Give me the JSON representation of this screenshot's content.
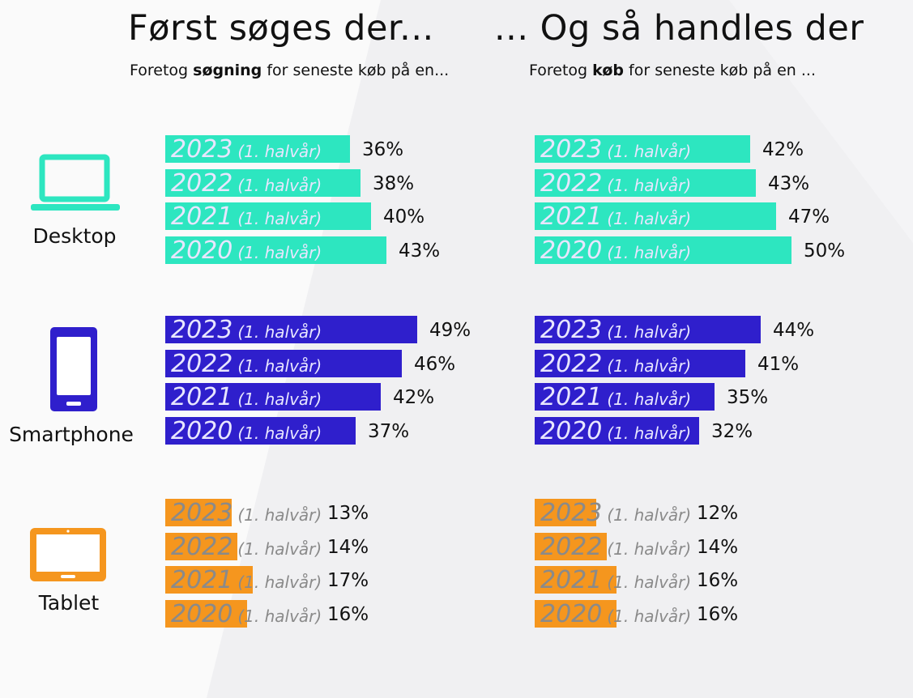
{
  "colors": {
    "desktop": "#2de6c0",
    "smartphone": "#2f1fcc",
    "tablet": "#f5961e",
    "label_on_dark": "#e8e6ff",
    "label_on_light": "#8a8a8a"
  },
  "left_panel": {
    "title": "Først søges der...",
    "subtitle_prefix": "Foretog ",
    "subtitle_bold": "søgning",
    "subtitle_suffix": " for seneste køb på en..."
  },
  "right_panel": {
    "title": "... Og så handles der",
    "subtitle_prefix": "Foretog ",
    "subtitle_bold": "køb",
    "subtitle_suffix": " for seneste køb på en ..."
  },
  "devices": [
    {
      "name": "Desktop",
      "icon": "laptop-icon"
    },
    {
      "name": "Smartphone",
      "icon": "smartphone-icon"
    },
    {
      "name": "Tablet",
      "icon": "tablet-icon"
    }
  ],
  "chart_data": [
    {
      "type": "bar",
      "title": "Først søges der...",
      "subtitle": "Foretog søgning for seneste køb på en...",
      "unit": "%",
      "series": [
        {
          "name": "Desktop",
          "categories": [
            "2023",
            "2022",
            "2021",
            "2020"
          ],
          "category_suffix": "(1. halvår)",
          "values": [
            36,
            38,
            40,
            43
          ],
          "labels": [
            "36%",
            "38%",
            "40%",
            "43%"
          ]
        },
        {
          "name": "Smartphone",
          "categories": [
            "2023",
            "2022",
            "2021",
            "2020"
          ],
          "category_suffix": "(1. halvår)",
          "values": [
            49,
            46,
            42,
            37
          ],
          "labels": [
            "49%",
            "46%",
            "42%",
            "37%"
          ]
        },
        {
          "name": "Tablet",
          "categories": [
            "2023",
            "2022",
            "2021",
            "2020"
          ],
          "category_suffix": "(1. halvår)",
          "values": [
            13,
            14,
            17,
            16
          ],
          "labels": [
            "13%",
            "14%",
            "17%",
            "16%"
          ]
        }
      ]
    },
    {
      "type": "bar",
      "title": "... Og så handles der",
      "subtitle": "Foretog køb for seneste køb på en ...",
      "unit": "%",
      "series": [
        {
          "name": "Desktop",
          "categories": [
            "2023",
            "2022",
            "2021",
            "2020"
          ],
          "category_suffix": "(1. halvår)",
          "values": [
            42,
            43,
            47,
            50
          ],
          "labels": [
            "42%",
            "43%",
            "47%",
            "50%"
          ]
        },
        {
          "name": "Smartphone",
          "categories": [
            "2023",
            "2022",
            "2021",
            "2020"
          ],
          "category_suffix": "(1. halvår)",
          "values": [
            44,
            41,
            35,
            32
          ],
          "labels": [
            "44%",
            "41%",
            "35%",
            "32%"
          ]
        },
        {
          "name": "Tablet",
          "categories": [
            "2023",
            "2022",
            "2021",
            "2020"
          ],
          "category_suffix": "(1. halvår)",
          "values": [
            12,
            14,
            16,
            16
          ],
          "labels": [
            "12%",
            "14%",
            "16%",
            "16%"
          ]
        }
      ]
    }
  ]
}
